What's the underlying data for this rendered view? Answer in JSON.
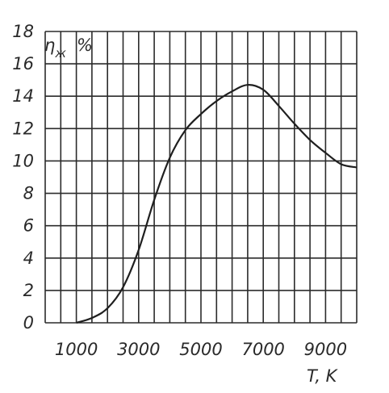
{
  "chart_data": {
    "type": "line",
    "title": "",
    "ylabel_symbol": "η",
    "ylabel_subscript": "ж",
    "ylabel_unit": "%",
    "xlabel": "T, K",
    "x_ticks": [
      "1000",
      "3000",
      "5000",
      "7000",
      "9000"
    ],
    "y_ticks": [
      "0",
      "2",
      "4",
      "6",
      "8",
      "10",
      "12",
      "14",
      "16",
      "18"
    ],
    "xlim": [
      0,
      10000
    ],
    "ylim": [
      0,
      18
    ],
    "grid": true,
    "series": [
      {
        "x": [
          1000,
          1500,
          2000,
          2500,
          3000,
          3500,
          4000,
          4500,
          5000,
          5500,
          6000,
          6500,
          7000,
          7500,
          8000,
          8500,
          9000,
          9500,
          10000
        ],
        "values": [
          0.0,
          0.3,
          0.9,
          2.2,
          4.5,
          7.6,
          10.2,
          11.9,
          12.9,
          13.7,
          14.3,
          14.7,
          14.4,
          13.4,
          12.3,
          11.3,
          10.5,
          9.8,
          9.6
        ]
      }
    ]
  }
}
